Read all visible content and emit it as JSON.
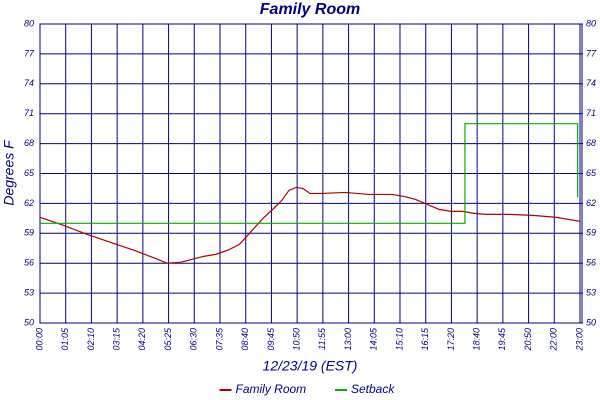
{
  "chart_data": {
    "type": "line",
    "title": "Family Room",
    "x_label": "12/23/19 (EST)",
    "y_label": "Degrees F",
    "xlim": [
      0,
      23
    ],
    "xticks": [
      {
        "value": 0,
        "label": "00:00"
      },
      {
        "value": 1.095,
        "label": "01:05"
      },
      {
        "value": 2.19,
        "label": "02:10"
      },
      {
        "value": 3.286,
        "label": "03:15"
      },
      {
        "value": 4.381,
        "label": "04:20"
      },
      {
        "value": 5.476,
        "label": "05:25"
      },
      {
        "value": 6.571,
        "label": "06:30"
      },
      {
        "value": 7.667,
        "label": "07:35"
      },
      {
        "value": 8.762,
        "label": "08:40"
      },
      {
        "value": 9.857,
        "label": "09:45"
      },
      {
        "value": 10.952,
        "label": "10:50"
      },
      {
        "value": 12.048,
        "label": "11:55"
      },
      {
        "value": 13.143,
        "label": "13:00"
      },
      {
        "value": 14.238,
        "label": "14:05"
      },
      {
        "value": 15.333,
        "label": "15:10"
      },
      {
        "value": 16.429,
        "label": "16:15"
      },
      {
        "value": 17.524,
        "label": "17:20"
      },
      {
        "value": 18.619,
        "label": "18:40"
      },
      {
        "value": 19.714,
        "label": "19:45"
      },
      {
        "value": 20.81,
        "label": "20:50"
      },
      {
        "value": 21.905,
        "label": "22:00"
      },
      {
        "value": 23,
        "label": "23:00"
      }
    ],
    "ylim": [
      50,
      80
    ],
    "yticks": [
      50,
      53,
      56,
      59,
      62,
      65,
      68,
      71,
      74,
      77,
      80
    ],
    "y2lim": [
      50,
      80
    ],
    "y2ticks": [
      50,
      53,
      56,
      59,
      62,
      65,
      68,
      71,
      74,
      77,
      80
    ],
    "grid": true,
    "legend": "bottom",
    "series": [
      {
        "name": "Family Room",
        "color": "#b00000",
        "x": [
          0,
          1,
          2,
          3,
          4,
          5,
          5.4,
          6,
          6.5,
          7,
          7.5,
          8,
          8.5,
          9,
          9.5,
          10,
          10.3,
          10.6,
          10.9,
          11.2,
          11.5,
          12,
          13,
          14,
          15,
          15.5,
          16,
          16.5,
          17,
          17.5,
          18,
          18.5,
          19,
          20,
          21,
          22,
          23
        ],
        "values": [
          60.6,
          59.8,
          58.9,
          58.1,
          57.3,
          56.4,
          56.0,
          56.1,
          56.4,
          56.7,
          56.9,
          57.3,
          57.9,
          59.2,
          60.5,
          61.6,
          62.3,
          63.3,
          63.6,
          63.5,
          63.0,
          63.0,
          63.1,
          62.9,
          62.9,
          62.7,
          62.4,
          61.9,
          61.4,
          61.2,
          61.2,
          61.0,
          60.9,
          60.9,
          60.8,
          60.6,
          60.2
        ]
      },
      {
        "name": "Setback",
        "color": "#00b000",
        "x": [
          0,
          18.1,
          18.1,
          22.9,
          22.9
        ],
        "values": [
          60,
          60,
          70,
          70,
          62.6
        ]
      }
    ]
  }
}
